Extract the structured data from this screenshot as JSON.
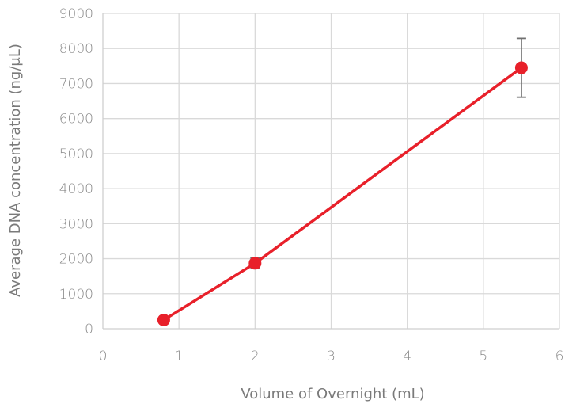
{
  "chart_data": {
    "type": "line",
    "xlabel": "Volume of Overnight (mL)",
    "ylabel": "Average DNA concentration (ng/μL)",
    "xlim": [
      0,
      6
    ],
    "ylim": [
      0,
      9000
    ],
    "x_ticks": [
      0,
      1,
      2,
      3,
      4,
      5,
      6
    ],
    "y_ticks": [
      0,
      1000,
      2000,
      3000,
      4000,
      5000,
      6000,
      7000,
      8000,
      9000
    ],
    "grid": true,
    "legend": "none",
    "colors": {
      "series": "#e8202a",
      "error_bar": "#707070",
      "grid": "#d9d9d9",
      "text": "#8a8a8a"
    },
    "series": [
      {
        "x": [
          0.8,
          2,
          5.5
        ],
        "y": [
          250,
          1870,
          7450
        ],
        "error": [
          60,
          150,
          840
        ]
      }
    ]
  }
}
